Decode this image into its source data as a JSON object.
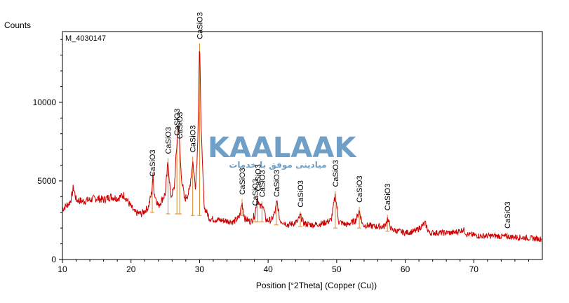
{
  "chart_data": {
    "type": "line",
    "title": "M_4030147",
    "ylabel": "Counts",
    "xlabel": "Position [°2Theta] (Copper (Cu))",
    "xlim": [
      10,
      80
    ],
    "ylim": [
      0,
      14500
    ],
    "x_ticks": [
      10,
      20,
      30,
      40,
      50,
      60,
      70
    ],
    "y_ticks": [
      0,
      5000,
      10000
    ],
    "grid": false,
    "series_color": "#cc0000",
    "marker_color": "#d98a2b",
    "profile": [
      [
        10,
        3200
      ],
      [
        10.5,
        3400
      ],
      [
        11,
        3600
      ],
      [
        11.3,
        3900
      ],
      [
        11.6,
        4600
      ],
      [
        12,
        3800
      ],
      [
        13,
        3700
      ],
      [
        14,
        3800
      ],
      [
        15,
        3900
      ],
      [
        16,
        3800
      ],
      [
        17,
        4000
      ],
      [
        18,
        3900
      ],
      [
        19,
        4100
      ],
      [
        19.8,
        3500
      ],
      [
        20.5,
        3000
      ],
      [
        21.5,
        2900
      ],
      [
        22.5,
        3300
      ],
      [
        23.0,
        4200
      ],
      [
        23.2,
        5300
      ],
      [
        23.4,
        4200
      ],
      [
        24,
        3400
      ],
      [
        25.0,
        4200
      ],
      [
        25.4,
        6200
      ],
      [
        25.8,
        4000
      ],
      [
        26.3,
        4500
      ],
      [
        26.9,
        8800
      ],
      [
        27.3,
        5500
      ],
      [
        27.8,
        3800
      ],
      [
        28.5,
        4300
      ],
      [
        29.0,
        6300
      ],
      [
        29.4,
        4600
      ],
      [
        29.7,
        7000
      ],
      [
        30.0,
        13500
      ],
      [
        30.3,
        7200
      ],
      [
        30.7,
        3300
      ],
      [
        31.5,
        2600
      ],
      [
        33,
        2500
      ],
      [
        35,
        2400
      ],
      [
        35.8,
        2700
      ],
      [
        36.2,
        3600
      ],
      [
        36.6,
        2600
      ],
      [
        37.5,
        2400
      ],
      [
        38.1,
        2900
      ],
      [
        38.4,
        4000
      ],
      [
        38.8,
        3300
      ],
      [
        39.2,
        3500
      ],
      [
        39.7,
        2500
      ],
      [
        40.5,
        2500
      ],
      [
        41.0,
        3000
      ],
      [
        41.3,
        3700
      ],
      [
        41.7,
        2500
      ],
      [
        43,
        2200
      ],
      [
        44.3,
        2400
      ],
      [
        44.7,
        2800
      ],
      [
        45.2,
        2300
      ],
      [
        46.5,
        2200
      ],
      [
        48,
        2300
      ],
      [
        49.2,
        2500
      ],
      [
        49.8,
        4100
      ],
      [
        50.3,
        2400
      ],
      [
        51.5,
        2200
      ],
      [
        52.8,
        2500
      ],
      [
        53.3,
        3100
      ],
      [
        53.8,
        2200
      ],
      [
        55.5,
        2100
      ],
      [
        57,
        2100
      ],
      [
        57.4,
        2600
      ],
      [
        58,
        1900
      ],
      [
        60,
        1700
      ],
      [
        61.5,
        1800
      ],
      [
        62.9,
        2300
      ],
      [
        63.5,
        1700
      ],
      [
        65,
        1700
      ],
      [
        67,
        1700
      ],
      [
        68.5,
        1900
      ],
      [
        69,
        1600
      ],
      [
        71,
        1500
      ],
      [
        73,
        1500
      ],
      [
        75,
        1450
      ],
      [
        77,
        1400
      ],
      [
        79.9,
        1300
      ]
    ],
    "reference_peaks": [
      {
        "x": 23.1,
        "y": 3000,
        "label": "CaSiO3"
      },
      {
        "x": 25.4,
        "y": 2900,
        "label": "CaSiO3"
      },
      {
        "x": 26.7,
        "y": 2900,
        "label": "CaSiO3"
      },
      {
        "x": 27.1,
        "y": 2900,
        "label": "CaSiO3"
      },
      {
        "x": 29.0,
        "y": 2800,
        "label": "CaSiO3"
      },
      {
        "x": 30.0,
        "y": 2800,
        "label": "CaSiO3"
      },
      {
        "x": 36.2,
        "y": 2800,
        "label": "CaSiO3"
      },
      {
        "x": 38.1,
        "y": 2400,
        "label": "CaSiO3"
      },
      {
        "x": 38.5,
        "y": 2400,
        "label": "CaSiO3"
      },
      {
        "x": 39.1,
        "y": 2400,
        "label": "CaSiO3"
      },
      {
        "x": 41.2,
        "y": 2200,
        "label": "CaSiO3"
      },
      {
        "x": 44.7,
        "y": 2100,
        "label": "CaSiO3"
      },
      {
        "x": 49.8,
        "y": 2000,
        "label": "CaSiO3"
      },
      {
        "x": 53.3,
        "y": 2000,
        "label": "CaSiO3"
      },
      {
        "x": 57.4,
        "y": 1800,
        "label": "CaSiO3"
      },
      {
        "x": 74.9,
        "y": 1500,
        "label": "CaSiO3"
      }
    ]
  },
  "watermark": {
    "text": "KAALAAK",
    "subtitle": "میادینی موفق با خدمات",
    "color": "#3f7fb5"
  }
}
